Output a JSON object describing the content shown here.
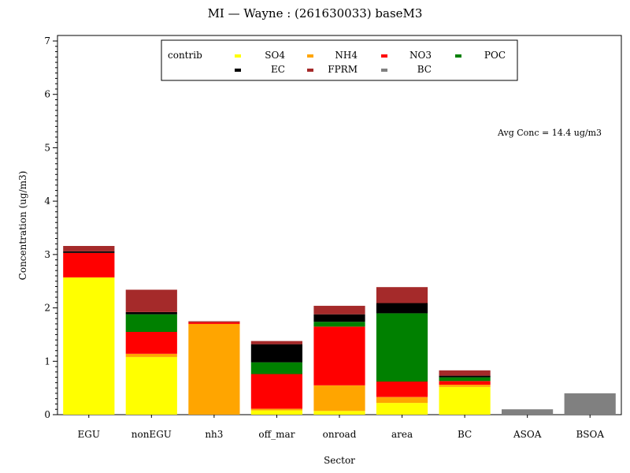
{
  "chart_data": {
    "type": "bar",
    "stacked": true,
    "title": "MI  —  Wayne : (261630033) baseM3",
    "xlabel": "Sector",
    "ylabel": "Concentration (ug/m3)",
    "ylim": [
      0,
      7
    ],
    "yticks": [
      0,
      1,
      2,
      3,
      4,
      5,
      6,
      7
    ],
    "grid": false,
    "legend_title": "contrib",
    "legend_position": "top-center",
    "annotation": "Avg Conc =  14.4 ug/m3",
    "categories": [
      "EGU",
      "nonEGU",
      "nh3",
      "off_mar",
      "onroad",
      "area",
      "BC",
      "ASOA",
      "BSOA"
    ],
    "series": [
      {
        "name": "SO4",
        "color": "#ffff00",
        "values": [
          2.57,
          1.08,
          0.0,
          0.08,
          0.07,
          0.22,
          0.52,
          0.0,
          0.0
        ]
      },
      {
        "name": "NH4",
        "color": "#ffa500",
        "values": [
          0.0,
          0.06,
          1.7,
          0.03,
          0.48,
          0.11,
          0.04,
          0.0,
          0.0
        ]
      },
      {
        "name": "NO3",
        "color": "#ff0000",
        "values": [
          0.46,
          0.41,
          0.03,
          0.65,
          1.1,
          0.29,
          0.07,
          0.0,
          0.0
        ]
      },
      {
        "name": "POC",
        "color": "#008000",
        "values": [
          0.0,
          0.33,
          0.0,
          0.22,
          0.09,
          1.28,
          0.07,
          0.0,
          0.0
        ]
      },
      {
        "name": "EC",
        "color": "#000000",
        "values": [
          0.03,
          0.04,
          0.0,
          0.34,
          0.14,
          0.19,
          0.03,
          0.0,
          0.0
        ]
      },
      {
        "name": "FPRM",
        "color": "#a52a2a",
        "values": [
          0.1,
          0.42,
          0.02,
          0.06,
          0.16,
          0.3,
          0.1,
          0.0,
          0.0
        ]
      },
      {
        "name": "BC",
        "color": "#808080",
        "values": [
          0.0,
          0.0,
          0.0,
          0.0,
          0.0,
          0.0,
          0.0,
          0.1,
          0.4
        ]
      }
    ]
  }
}
